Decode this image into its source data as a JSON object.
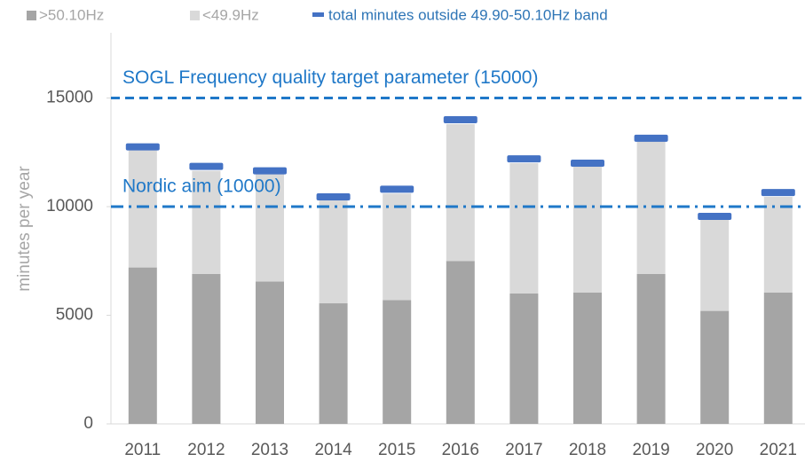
{
  "chart_data": {
    "type": "stacked-bar",
    "y_axis_label": "minutes per year",
    "categories": [
      "2011",
      "2012",
      "2013",
      "2014",
      "2015",
      "2016",
      "2017",
      "2018",
      "2019",
      "2020",
      "2021"
    ],
    "series": [
      {
        "name": ">50.10Hz",
        "color": "#a5a5a5",
        "kind": "bar",
        "values": [
          7200,
          6900,
          6550,
          5550,
          5700,
          7500,
          6000,
          6050,
          6900,
          5200,
          6050
        ]
      },
      {
        "name": "<49.9Hz",
        "color": "#d9d9d9",
        "kind": "bar",
        "values": [
          5400,
          4750,
          4950,
          4750,
          4900,
          6300,
          6000,
          5800,
          6100,
          4200,
          4400
        ]
      },
      {
        "name": "total minutes outside 49.90-50.10Hz band",
        "color": "#4472c4",
        "kind": "marker",
        "values": [
          12750,
          11850,
          11650,
          10450,
          10800,
          14000,
          12200,
          12000,
          13150,
          9550,
          10650
        ]
      }
    ],
    "reference_lines": [
      {
        "value": 15000,
        "label": "SOGL Frequency quality target parameter (15000)",
        "style": "dash",
        "color": "#1f78c8"
      },
      {
        "value": 10000,
        "label": "Nordic aim (10000)",
        "style": "dashdot",
        "color": "#1f78c8"
      }
    ],
    "ylim": [
      0,
      18000
    ],
    "yticks": [
      0,
      5000,
      10000,
      15000
    ]
  }
}
